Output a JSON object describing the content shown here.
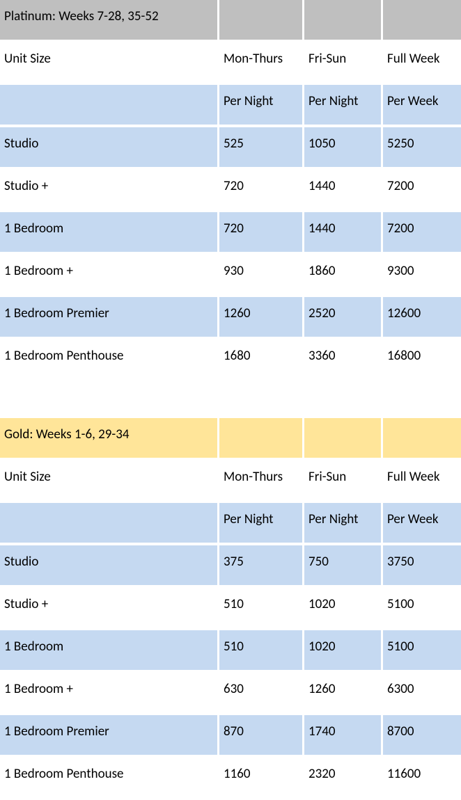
{
  "colors": {
    "platinum_header_bg": "#bfbfbf",
    "gold_header_bg": "#ffe599",
    "band_blue": "#c5d9f1",
    "band_white": "#ffffff",
    "text": "#000000",
    "row_gap_color": "#ffffff"
  },
  "columns": {
    "unit_size": "Unit Size",
    "mon_thurs": "Mon-Thurs",
    "fri_sun": "Fri-Sun",
    "full_week": "Full Week"
  },
  "sub_columns": {
    "per_night": "Per Night",
    "per_week": "Per Week"
  },
  "platinum": {
    "title": "Platinum: Weeks 7-28, 35-52",
    "rows": [
      {
        "unit": "Studio",
        "mt": "525",
        "fs": "1050",
        "fw": "5250"
      },
      {
        "unit": "Studio +",
        "mt": "720",
        "fs": "1440",
        "fw": "7200"
      },
      {
        "unit": "1 Bedroom",
        "mt": "720",
        "fs": "1440",
        "fw": "7200"
      },
      {
        "unit": "1 Bedroom +",
        "mt": "930",
        "fs": "1860",
        "fw": "9300"
      },
      {
        "unit": "1 Bedroom Premier",
        "mt": "1260",
        "fs": "2520",
        "fw": "12600"
      },
      {
        "unit": "1 Bedroom Penthouse",
        "mt": "1680",
        "fs": "3360",
        "fw": "16800"
      }
    ]
  },
  "gold": {
    "title": "Gold: Weeks 1-6, 29-34",
    "rows": [
      {
        "unit": "Studio",
        "mt": "375",
        "fs": "750",
        "fw": "3750"
      },
      {
        "unit": "Studio +",
        "mt": "510",
        "fs": "1020",
        "fw": "5100"
      },
      {
        "unit": "1 Bedroom",
        "mt": "510",
        "fs": "1020",
        "fw": "5100"
      },
      {
        "unit": "1 Bedroom +",
        "mt": "630",
        "fs": "1260",
        "fw": "6300"
      },
      {
        "unit": "1 Bedroom Premier",
        "mt": "870",
        "fs": "1740",
        "fw": "8700"
      },
      {
        "unit": "1 Bedroom Penthouse",
        "mt": "1160",
        "fs": "2320",
        "fw": "11600"
      }
    ]
  }
}
